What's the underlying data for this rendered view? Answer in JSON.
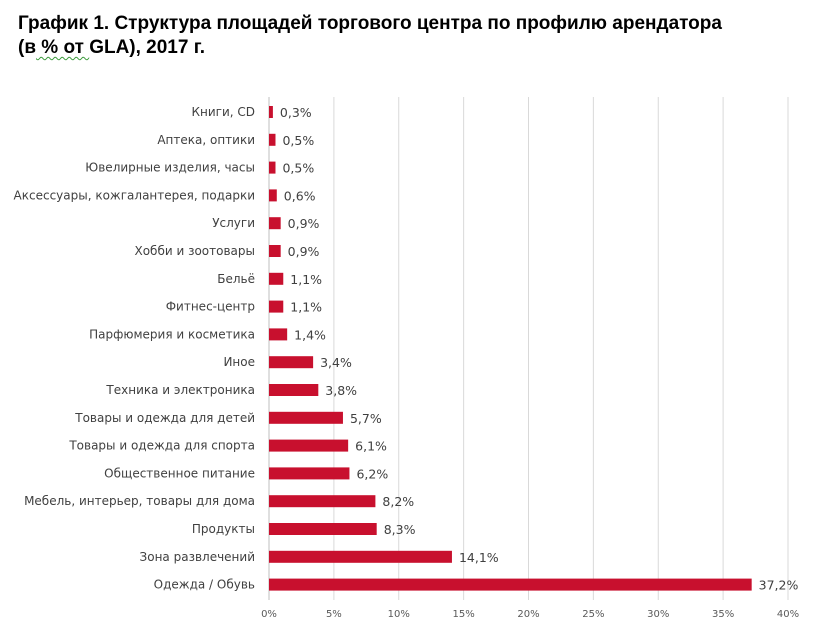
{
  "title": {
    "line1": "График 1. Структура площадей торгового центра по профилю арендатора",
    "line2_prefix": "(в",
    "line2_squiggle": " % от ",
    "line2_suffix": "GLA), 2017 г."
  },
  "colors": {
    "bar": "#C8102E",
    "grid": "#D9D9D9",
    "axis": "#BFBFBF",
    "text": "#404040"
  },
  "chart_data": {
    "type": "bar",
    "orientation": "horizontal",
    "title": "График 1. Структура площадей торгового центра по профилю арендатора (в % от GLA), 2017 г.",
    "categories": [
      "Книги, CD",
      "Аптека, оптики",
      "Ювелирные изделия, часы",
      "Аксессуары, кожгалантерея, подарки",
      "Услуги",
      "Хобби и зоотовары",
      "Бельё",
      "Фитнес-центр",
      "Парфюмерия и косметика",
      "Иное",
      "Техника и электроника",
      "Товары и одежда для детей",
      "Товары и одежда для спорта",
      "Общественное питание",
      "Мебель, интерьер, товары для дома",
      "Продукты",
      "Зона развлечений",
      "Одежда / Обувь"
    ],
    "values": [
      0.3,
      0.5,
      0.5,
      0.6,
      0.9,
      0.9,
      1.1,
      1.1,
      1.4,
      3.4,
      3.8,
      5.7,
      6.1,
      6.2,
      8.2,
      8.3,
      14.1,
      37.2
    ],
    "value_labels": [
      "0,3%",
      "0,5%",
      "0,5%",
      "0,6%",
      "0,9%",
      "0,9%",
      "1,1%",
      "1,1%",
      "1,4%",
      "3,4%",
      "3,8%",
      "5,7%",
      "6,1%",
      "6,2%",
      "8,2%",
      "8,3%",
      "14,1%",
      "37,2%"
    ],
    "xlim": [
      0,
      40
    ],
    "x_ticks": [
      0,
      5,
      10,
      15,
      20,
      25,
      30,
      35,
      40
    ],
    "x_tick_labels": [
      "0%",
      "5%",
      "10%",
      "15%",
      "20%",
      "25%",
      "30%",
      "35%",
      "40%"
    ],
    "grid": true,
    "legend": "none"
  }
}
